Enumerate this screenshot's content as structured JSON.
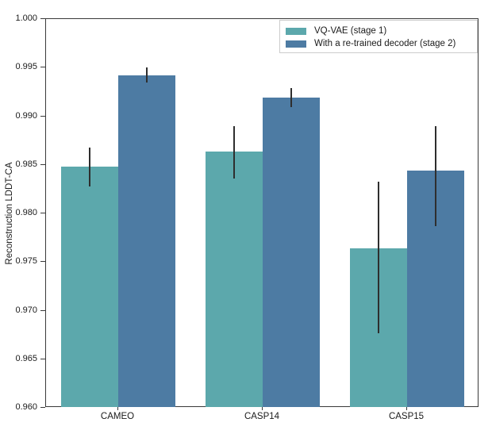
{
  "chart_data": {
    "type": "bar",
    "title": "",
    "xlabel": "",
    "ylabel": "Reconstruction LDDT-CA",
    "ylim": [
      0.96,
      1.0
    ],
    "grid": false,
    "legend_position": "upper right",
    "error_bar_color": "#2e2e2e",
    "spine_color": "#3a3a3a",
    "yticks": [
      {
        "label": "1.000",
        "value": 1.0
      },
      {
        "label": "0.995",
        "value": 0.995
      },
      {
        "label": "0.990",
        "value": 0.99
      },
      {
        "label": "0.985",
        "value": 0.985
      },
      {
        "label": "0.980",
        "value": 0.98
      },
      {
        "label": "0.975",
        "value": 0.975
      },
      {
        "label": "0.970",
        "value": 0.97
      },
      {
        "label": "0.965",
        "value": 0.965
      },
      {
        "label": "0.960",
        "value": 0.96
      }
    ],
    "categories": [
      "CAMEO",
      "CASP14",
      "CASP15"
    ],
    "series": [
      {
        "name": "VQ-VAE (stage 1)",
        "color": "#5ca8ac",
        "values": [
          0.9848,
          0.9864,
          0.9764
        ],
        "err_low": [
          0.9828,
          0.9836,
          0.9677
        ],
        "err_high": [
          0.9868,
          0.989,
          0.9833
        ]
      },
      {
        "name": "With a re-trained decoder (stage 2)",
        "color": "#4d7ba3",
        "values": [
          0.9942,
          0.9919,
          0.9844
        ],
        "err_low": [
          0.9935,
          0.9909,
          0.9787
        ],
        "err_high": [
          0.995,
          0.9929,
          0.989
        ]
      }
    ]
  }
}
